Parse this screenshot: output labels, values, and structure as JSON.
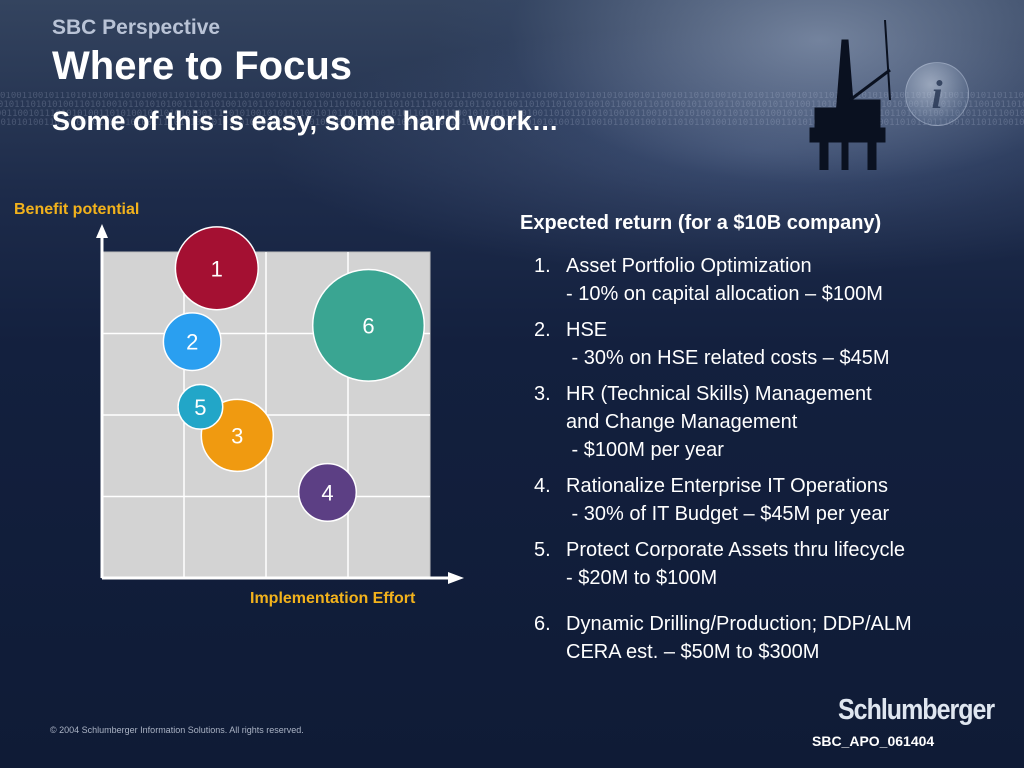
{
  "header": {
    "kicker": "SBC Perspective",
    "title": "Where to Focus",
    "subtitle": "Some of this is easy, some hard work…"
  },
  "chart_data": {
    "type": "scatter",
    "title": "",
    "ylabel": "Benefit potential",
    "xlabel": "Implementation Effort",
    "grid": true,
    "xlim": [
      0,
      4
    ],
    "ylim": [
      0,
      4
    ],
    "points": [
      {
        "label": "1",
        "x": 1.4,
        "y": 3.8,
        "size": 1.15,
        "color": "#a41032"
      },
      {
        "label": "2",
        "x": 1.1,
        "y": 2.9,
        "size": 0.8,
        "color": "#2a9ff0"
      },
      {
        "label": "3",
        "x": 1.65,
        "y": 1.75,
        "size": 1.0,
        "color": "#f09a10"
      },
      {
        "label": "4",
        "x": 2.75,
        "y": 1.05,
        "size": 0.8,
        "color": "#5c3f84"
      },
      {
        "label": "5",
        "x": 1.2,
        "y": 2.1,
        "size": 0.62,
        "color": "#22a6c8"
      },
      {
        "label": "6",
        "x": 3.25,
        "y": 3.1,
        "size": 1.55,
        "color": "#3aa592"
      }
    ]
  },
  "returns": {
    "heading": "Expected return (for a $10B company)",
    "items": [
      {
        "num": "1.",
        "lines": [
          "Asset Portfolio Optimization",
          "- 10% on capital allocation – $100M"
        ]
      },
      {
        "num": "2.",
        "lines": [
          "HSE",
          " - 30% on HSE related costs – $45M"
        ]
      },
      {
        "num": "3.",
        "lines": [
          "HR (Technical Skills) Management",
          "and Change Management",
          " - $100M per year"
        ]
      },
      {
        "num": "4.",
        "lines": [
          "Rationalize Enterprise IT Operations",
          " - 30% of IT Budget – $45M per year"
        ]
      },
      {
        "num": "5.",
        "lines": [
          "Protect Corporate Assets thru lifecycle",
          "- $20M to $100M"
        ]
      },
      {
        "num": "6.",
        "lines": [
          "Dynamic Drilling/Production; DDP/ALM",
          "CERA est. – $50M to $300M"
        ]
      }
    ]
  },
  "footer": {
    "copyright": "© 2004 Schlumberger Information Solutions. All rights reserved.",
    "logo": "Schlumberger",
    "doc_id": "SBC_APO_061404"
  },
  "background": {
    "binary_text": "0100110010111010101001101010010110101010011110101001010110100101011011010010101101011110010101011010100110101101010100101100101101010010110101101001010110100110101001011010101001101011011100101101010010101"
  },
  "colors": {
    "accent_label": "#f2b21c",
    "title": "#ffffff",
    "kicker": "#b9c3d6"
  }
}
